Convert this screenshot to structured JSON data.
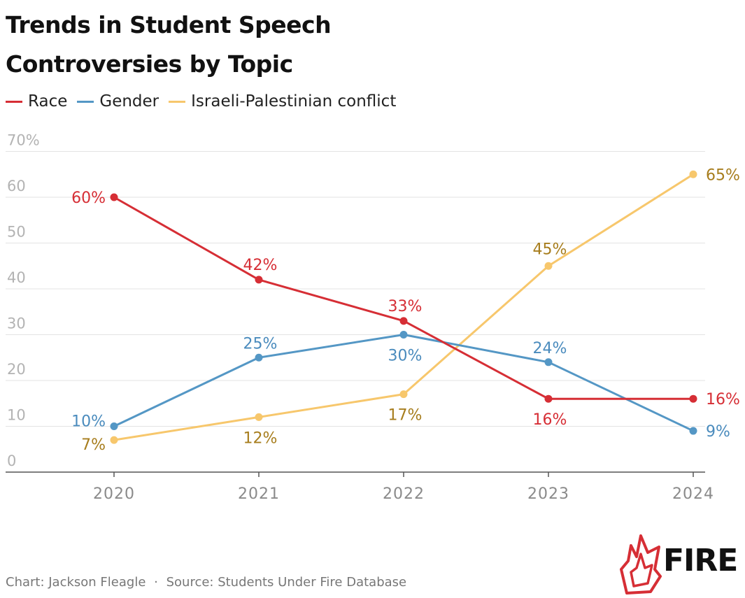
{
  "title_line1": "Trends in Student Speech",
  "title_line2": "Controversies by Topic",
  "footer": {
    "credit": "Chart: Jackson Fleagle",
    "separator": "·",
    "source": "Source: Students Under Fire Database"
  },
  "logo_text": "FIRE",
  "chart_data": {
    "type": "line",
    "title": "Trends in Student Speech Controversies by Topic",
    "x": [
      "2020",
      "2021",
      "2022",
      "2023",
      "2024"
    ],
    "ylim": [
      0,
      70
    ],
    "yticks": [
      0,
      10,
      20,
      30,
      40,
      50,
      60,
      70
    ],
    "ytick_labels": [
      "0",
      "10",
      "20",
      "30",
      "40",
      "50",
      "60",
      "70%"
    ],
    "grid": true,
    "legend_position": "top-left",
    "series": [
      {
        "name": "Race",
        "color": "#d62e35",
        "label_color": "#d62e35",
        "values": [
          60,
          42,
          33,
          16,
          16
        ],
        "labels": [
          "60%",
          "42%",
          "33%",
          "16%",
          "16%"
        ]
      },
      {
        "name": "Gender",
        "color": "#5497c5",
        "label_color": "#4a8bbd",
        "values": [
          10,
          25,
          30,
          24,
          9
        ],
        "labels": [
          "10%",
          "25%",
          "30%",
          "24%",
          "9%"
        ]
      },
      {
        "name": "Israeli-Palestinian conflict",
        "color": "#f7c76c",
        "label_color": "#a77d1d",
        "values": [
          7,
          12,
          17,
          45,
          65
        ],
        "labels": [
          "7%",
          "12%",
          "17%",
          "45%",
          "65%"
        ]
      }
    ]
  }
}
